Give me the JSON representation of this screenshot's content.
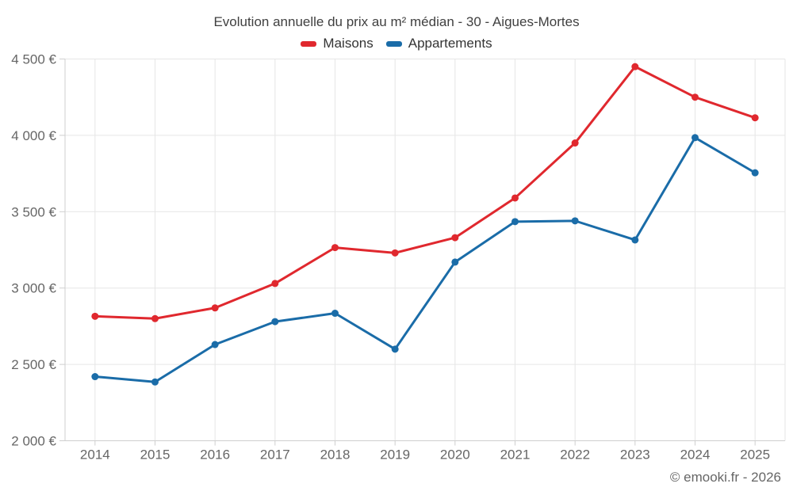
{
  "chart_data": {
    "type": "line",
    "title": "Evolution annuelle du prix au m² médian - 30 - Aigues-Mortes",
    "categories": [
      "2014",
      "2015",
      "2016",
      "2017",
      "2018",
      "2019",
      "2020",
      "2021",
      "2022",
      "2023",
      "2024",
      "2025"
    ],
    "series": [
      {
        "name": "Maisons",
        "color": "#e0282e",
        "values": [
          2815,
          2800,
          2870,
          3030,
          3265,
          3230,
          3330,
          3590,
          3950,
          4450,
          4250,
          4115
        ]
      },
      {
        "name": "Appartements",
        "color": "#1a6ca8",
        "values": [
          2420,
          2385,
          2630,
          2780,
          2835,
          2600,
          3170,
          3435,
          3440,
          3315,
          3985,
          3755
        ]
      }
    ],
    "xlabel": "",
    "ylabel": "",
    "ylim": [
      2000,
      4500
    ],
    "ytick_step": 500,
    "yticks": [
      {
        "v": 2000,
        "label": "2 000 €"
      },
      {
        "v": 2500,
        "label": "2 500 €"
      },
      {
        "v": 3000,
        "label": "3 000 €"
      },
      {
        "v": 3500,
        "label": "3 500 €"
      },
      {
        "v": 4000,
        "label": "4 000 €"
      },
      {
        "v": 4500,
        "label": "4 500 €"
      }
    ],
    "grid": true,
    "legend_position": "top",
    "footer": "© emooki.fr - 2026"
  },
  "colors": {
    "grid": "#e6e6e6",
    "axis": "#cfcfcf",
    "tick": "#cfcfcf",
    "axis_label_text": "#666666",
    "title_text": "#404040",
    "legend_text": "#333333",
    "footer_text": "#666666"
  }
}
